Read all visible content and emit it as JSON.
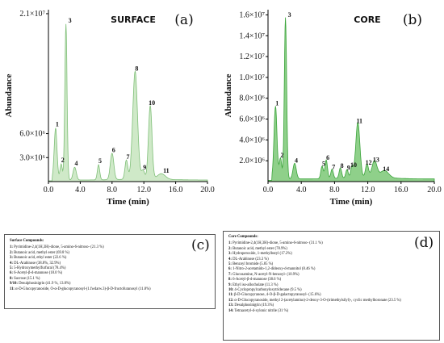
{
  "chart_data": [
    {
      "type": "line",
      "id": "a",
      "title": "SURFACE",
      "panel_label": "(a)",
      "xlabel": "Time (min)",
      "ylabel": "Abundance",
      "xlim": [
        0,
        20
      ],
      "ylim": [
        0,
        21500000
      ],
      "x_ticks": [
        "0.0",
        "4.0",
        "8.0",
        "12.0",
        "16.0",
        "20.0"
      ],
      "y_ticks": [
        {
          "value": 3000000,
          "label": "3.0×10⁶"
        },
        {
          "value": 6000000,
          "label": "6.0×10⁶"
        },
        {
          "value": 21000000,
          "label": "2.1×10⁷"
        }
      ],
      "fill_color": "#cfe9c8",
      "line_color": "#7fbf78",
      "baseline": 200000,
      "peaks": [
        {
          "label": "1",
          "x": 0.9,
          "y": 6500000,
          "w": 0.18
        },
        {
          "label": "2",
          "x": 1.6,
          "y": 2000000,
          "w": 0.15
        },
        {
          "label": "3",
          "x": 2.2,
          "y": 19500000,
          "w": 0.14
        },
        {
          "label": "4",
          "x": 3.3,
          "y": 1600000,
          "w": 0.2
        },
        {
          "label": "5",
          "x": 6.3,
          "y": 1900000,
          "w": 0.15
        },
        {
          "label": "6",
          "x": 8.0,
          "y": 3300000,
          "w": 0.22
        },
        {
          "label": "7",
          "x": 9.8,
          "y": 2400000,
          "w": 0.18
        },
        {
          "label": "8",
          "x": 10.9,
          "y": 13500000,
          "w": 0.3
        },
        {
          "label": "9",
          "x": 11.9,
          "y": 1100000,
          "w": 0.2
        },
        {
          "label": "10",
          "x": 12.8,
          "y": 9200000,
          "w": 0.22
        },
        {
          "label": "11",
          "x": 14.2,
          "y": 700000,
          "w": 0.5
        }
      ]
    },
    {
      "type": "line",
      "id": "b",
      "title": "CORE",
      "panel_label": "(b)",
      "xlabel": "Time (min)",
      "ylabel": "Abundance",
      "xlim": [
        0,
        20
      ],
      "ylim": [
        0,
        16500000
      ],
      "x_ticks": [
        "0.0",
        "4.0",
        "8.0",
        "12.0",
        "16.0",
        "20.0"
      ],
      "y_ticks": [
        {
          "value": 2000000,
          "label": "2.0×10⁶"
        },
        {
          "value": 4000000,
          "label": "4.0×10⁶"
        },
        {
          "value": 6000000,
          "label": "6.0×10⁶"
        },
        {
          "value": 8000000,
          "label": "8.0×10⁶"
        },
        {
          "value": 10000000,
          "label": "1.0×10⁷"
        },
        {
          "value": 12000000,
          "label": "1.2×10⁷"
        },
        {
          "value": 14000000,
          "label": "1.4×10⁷"
        },
        {
          "value": 16000000,
          "label": "1.6×10⁷"
        }
      ],
      "fill_color": "#8fd08a",
      "line_color": "#3aa43a",
      "baseline": 250000,
      "peaks": [
        {
          "label": "1",
          "x": 0.9,
          "y": 7000000,
          "w": 0.18
        },
        {
          "label": "2",
          "x": 1.5,
          "y": 2000000,
          "w": 0.15
        },
        {
          "label": "3",
          "x": 2.1,
          "y": 15500000,
          "w": 0.14
        },
        {
          "label": "4",
          "x": 3.2,
          "y": 1500000,
          "w": 0.2
        },
        {
          "label": "5",
          "x": 6.5,
          "y": 1200000,
          "w": 0.15
        },
        {
          "label": "6",
          "x": 7.0,
          "y": 1800000,
          "w": 0.15
        },
        {
          "label": "7",
          "x": 7.7,
          "y": 900000,
          "w": 0.15
        },
        {
          "label": "8",
          "x": 8.7,
          "y": 1000000,
          "w": 0.15
        },
        {
          "label": "9",
          "x": 9.5,
          "y": 800000,
          "w": 0.15
        },
        {
          "label": "10",
          "x": 10.1,
          "y": 1100000,
          "w": 0.15
        },
        {
          "label": "11",
          "x": 10.8,
          "y": 5300000,
          "w": 0.25
        },
        {
          "label": "12",
          "x": 11.9,
          "y": 1300000,
          "w": 0.18
        },
        {
          "label": "13",
          "x": 12.8,
          "y": 1600000,
          "w": 0.3
        },
        {
          "label": "14",
          "x": 14.0,
          "y": 700000,
          "w": 0.5
        }
      ]
    }
  ],
  "surface_box": {
    "heading": "Surface Compounds:",
    "panel_label": "(c)",
    "items": [
      {
        "num": "1:",
        "text": "Pyrimidine-2,4(1H,3H)-dione, 5-amino-6-nitroso- (21.3 %)"
      },
      {
        "num": "2:",
        "text": "Butanoic acid, methyl ester (69.8 %)"
      },
      {
        "num": "3:",
        "text": "Butanoic acid, ethyl ester (22.6 %)"
      },
      {
        "num": "4:",
        "text": "DL-Arabinose (38.8%, 32.9%)"
      },
      {
        "num": "5:",
        "text": "5-Hydroxymethylfurfural (78.4%)"
      },
      {
        "num": "6:",
        "text": "6-Acetyl-β-d-mannose (18.0 %)"
      },
      {
        "num": "8:",
        "text": "Sucrose (15.1 %)"
      },
      {
        "num": "9/10:",
        "text": "Desulphosinigrin (41.9 %, 13.8%)"
      },
      {
        "num": "11:",
        "text": "α-D-Glucopyranoside, O-α-D-glucopyranosyl-(1.fwdarw.3)-β-D-fructofuranosyl (11.8%)"
      }
    ]
  },
  "core_box": {
    "heading": "Core Compounds:",
    "panel_label": "(d)",
    "items": [
      {
        "num": "1:",
        "text": "Pyrimidine-2,4(1H,3H)-dione, 5-amino-6-nitroso- (31.1 %)"
      },
      {
        "num": "2:",
        "text": "Butanoic acid, methyl ester (78.9%)"
      },
      {
        "num": "3:",
        "text": "Hydroperoxide, 1-methylbutyl (17.2%)"
      },
      {
        "num": "4:",
        "text": "DL-Arabinose (23.3 %)"
      },
      {
        "num": "5:",
        "text": "Benzoyl bromide (5.85 %)"
      },
      {
        "num": "6:",
        "text": "1-Nitro-2-acetamido-1,2-dideoxy-d-mannitol (8.46 %)"
      },
      {
        "num": "7:",
        "text": "Glucosamine, N-acetyl-N-benzoyl- (10.9%)"
      },
      {
        "num": "8:",
        "text": "6-Acetyl-β-d-mannose (38.6 %)"
      },
      {
        "num": "9:",
        "text": "Ethyl iso-allocholate (11.3 %)"
      },
      {
        "num": "10:",
        "text": "4-Cyclopropylcarbonyloxytridecane (9.5 %)"
      },
      {
        "num": "11:",
        "text": "β-D-Glucopyranose, 4-O-β-D-galactopyranosyl- (15.6%)"
      },
      {
        "num": "12:",
        "text": "α-D-Glucopyranoside, methyl 2-(acetylamino)-2-deoxy-3-O-(trimethylsilyl)-, cyclic methylboronate (23.5 %)"
      },
      {
        "num": "13:",
        "text": "Desulphosinigrin (19.3%)"
      },
      {
        "num": "14:",
        "text": "Tetraacetyl-d-xylonic nitrile (31 %)"
      }
    ]
  }
}
